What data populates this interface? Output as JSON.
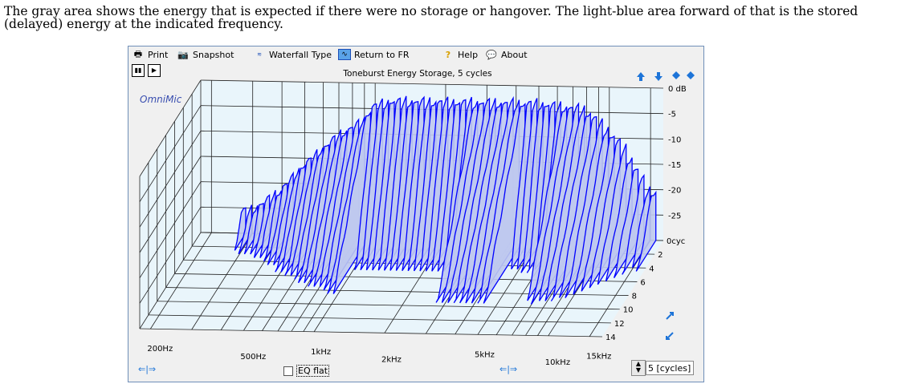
{
  "caption": "The gray area shows the energy that is expected if there were no storage or hangover.   The light-blue area forward of that is the stored (delayed) energy at the indicated frequency.",
  "toolbar": {
    "print": "Print",
    "snapshot": "Snapshot",
    "waterfall_type": "Waterfall Type",
    "return_fr": "Return to FR",
    "help": "Help",
    "about": "About"
  },
  "icons": [
    "printer-icon",
    "camera-icon",
    "waterfall-icon",
    "chart-icon",
    "help-icon",
    "about-icon",
    "pause-icon",
    "play-icon",
    "arrow-up-icon",
    "arrow-down-icon",
    "expand-icon",
    "shrink-icon",
    "scroll-left-icon",
    "scroll-right-icon"
  ],
  "brand": "OmniMic",
  "eq_flat_label": "EQ flat",
  "cycles_value": "5 [cycles]",
  "colors": {
    "surface": "#bfc9ee",
    "lines": "#0000ff",
    "grid": "#222222",
    "panel": "#e9f5fb"
  },
  "chart_data": {
    "type": "area",
    "title": "Toneburst Energy Storage, 5 cycles",
    "xscale": "log",
    "x_tick_labels": [
      "200Hz",
      "500Hz",
      "1kHz",
      "2kHz",
      "5kHz",
      "10kHz",
      "15kHz"
    ],
    "x_ticks_hz": [
      200,
      500,
      1000,
      2000,
      5000,
      10000,
      15000
    ],
    "y_tick_labels": [
      "0 dB",
      "-5",
      "-10",
      "-15",
      "-20",
      "-25"
    ],
    "ylim": [
      -30,
      0
    ],
    "z_tick_labels": [
      "0cyc",
      "2",
      "4",
      "6",
      "8",
      "10",
      "12",
      "14"
    ],
    "zlim": [
      0,
      14
    ],
    "grid": true,
    "envelope_x_hz": [
      300,
      400,
      500,
      700,
      900,
      1000,
      1200,
      1500,
      2000,
      3000,
      5000,
      8000,
      10000,
      12000,
      15000
    ],
    "envelope_db": [
      -25,
      -21,
      -16,
      -10,
      -7,
      -4,
      -3,
      -3,
      -3,
      -3,
      -3,
      -4,
      -8,
      -12,
      -20
    ]
  }
}
